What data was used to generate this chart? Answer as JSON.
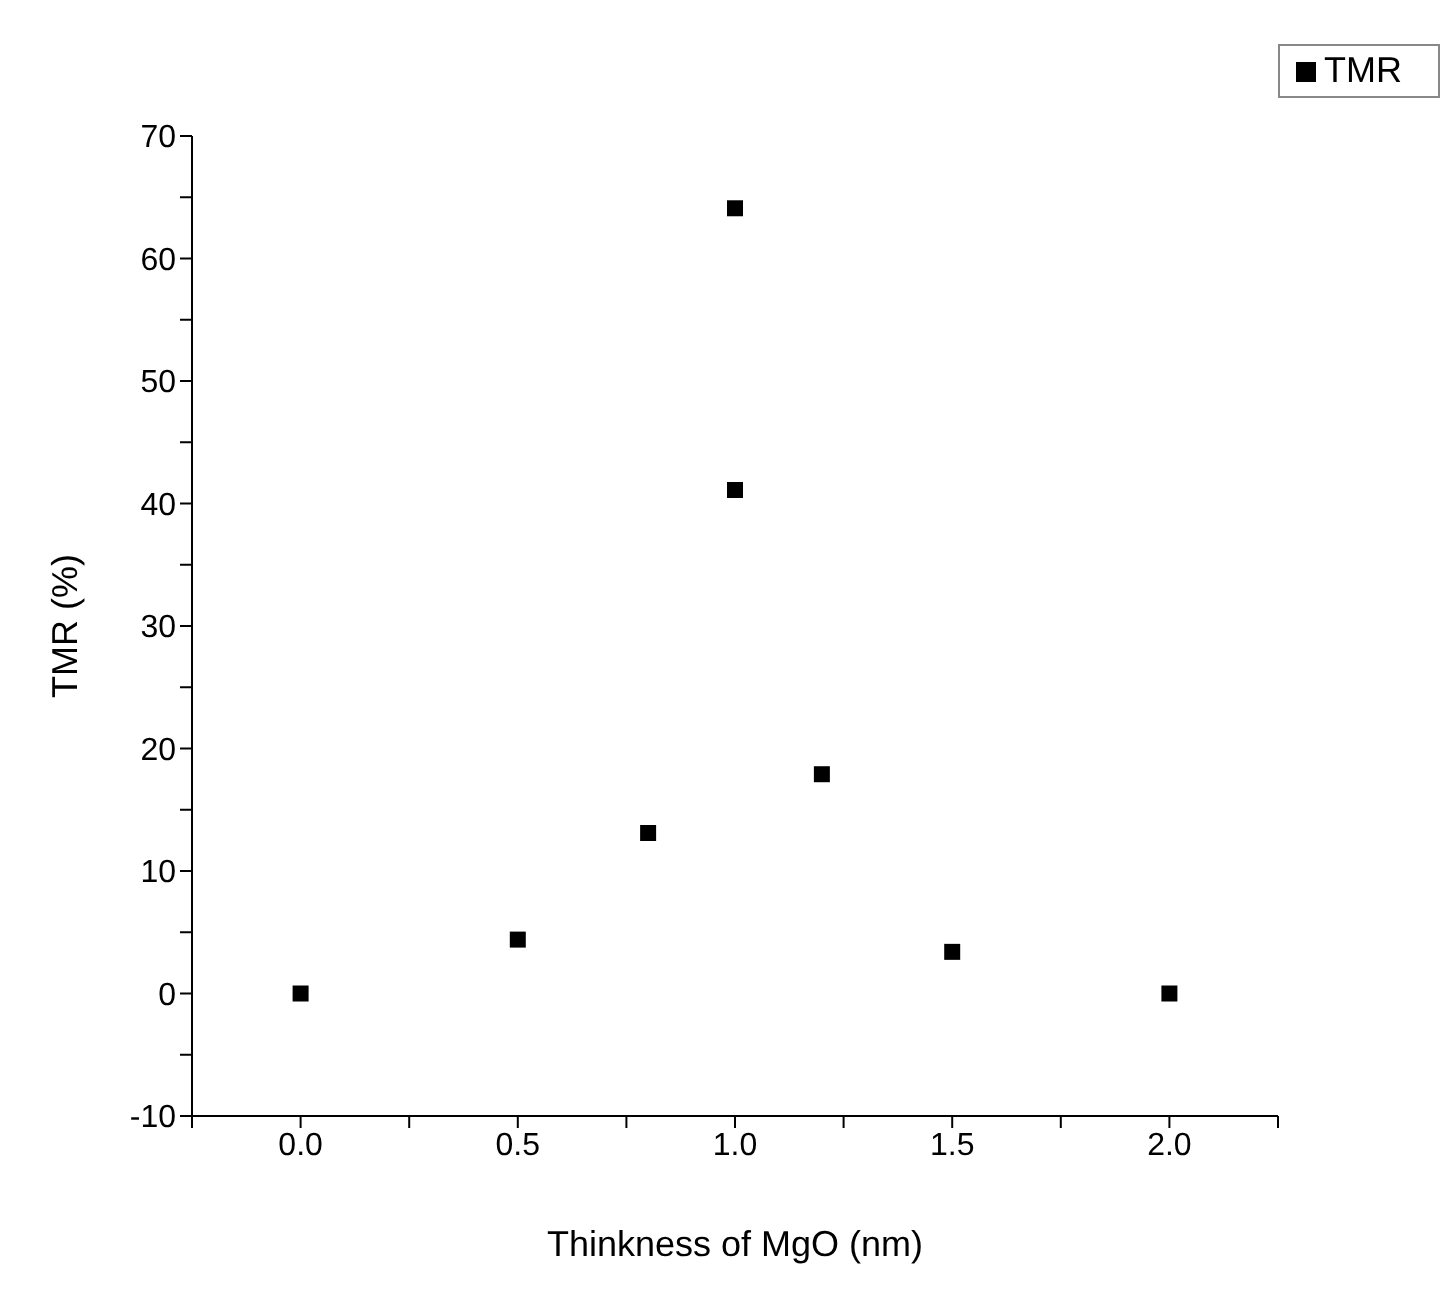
{
  "chart_data": {
    "type": "scatter",
    "xlabel": "Thinkness of MgO (nm)",
    "ylabel": "TMR (%)",
    "x": [
      0,
      0.5,
      0.8,
      1.0,
      1.0,
      1.2,
      1.5,
      2.0
    ],
    "series": [
      {
        "name": "TMR",
        "color": "#000000",
        "values": [
          0,
          4.4,
          13.1,
          64.1,
          41.1,
          17.9,
          3.4,
          0
        ]
      }
    ],
    "xlim": [
      -0.25,
      2.25
    ],
    "xticks": [
      {
        "value": -0.25,
        "label": null
      },
      {
        "value": 0,
        "label": "0.0"
      },
      {
        "value": 0.25,
        "label": null
      },
      0.5,
      {
        "value": 0.75,
        "label": null
      },
      {
        "value": 1,
        "label": "1.0"
      },
      {
        "value": 1.25,
        "label": null
      },
      1.5,
      {
        "value": 1.75,
        "label": null
      },
      {
        "value": 2,
        "label": "2.0"
      },
      {
        "value": 2.25,
        "label": null
      }
    ],
    "ylim": [
      -10,
      70
    ],
    "yticks": [
      -10,
      {
        "value": -5,
        "label": null
      },
      0,
      {
        "value": 5,
        "label": null
      },
      10,
      {
        "value": 15,
        "label": null
      },
      20,
      {
        "value": 25,
        "label": null
      },
      30,
      {
        "value": 35,
        "label": null
      },
      40,
      {
        "value": 45,
        "label": null
      },
      50,
      {
        "value": 55,
        "label": null
      },
      60,
      {
        "value": 65,
        "label": null
      },
      70
    ],
    "marker": "square",
    "legend": "top right",
    "grid": false
  }
}
